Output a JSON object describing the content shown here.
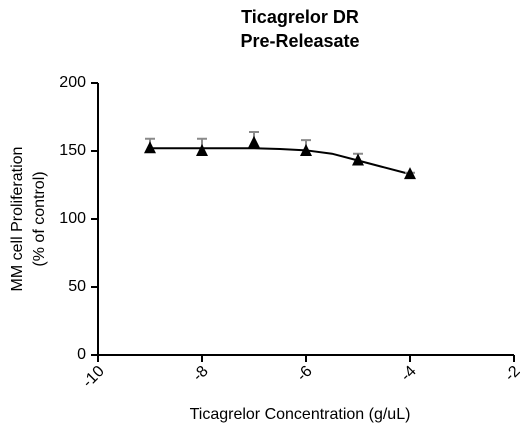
{
  "chart_data": {
    "type": "scatter",
    "title": [
      "Ticagrelor DR",
      "Pre-Releasate"
    ],
    "xlabel": "Ticagrelor Concentration (g/uL)",
    "ylabel": [
      "MM cell Proliferation",
      "(% of control)"
    ],
    "xlim": [
      -10,
      -2
    ],
    "ylim": [
      0,
      200
    ],
    "xticks": [
      -10,
      -8,
      -6,
      -4,
      -2
    ],
    "yticks": [
      0,
      50,
      100,
      150,
      200
    ],
    "grid": false,
    "series": [
      {
        "color": "#000000",
        "error_color": "#8a8a8a",
        "x": [
          -9,
          -8,
          -7,
          -6,
          -5,
          -4
        ],
        "values": [
          152,
          150,
          156,
          150,
          143,
          133
        ],
        "error": [
          7,
          9,
          8,
          8,
          5,
          1
        ]
      }
    ],
    "fit": {
      "color": "#000000",
      "x": [
        -9,
        -8,
        -7,
        -6.5,
        -6,
        -5.5,
        -5,
        -4.5,
        -4
      ],
      "values": [
        152,
        152,
        152,
        151.5,
        150.5,
        148,
        143,
        138,
        133
      ]
    }
  }
}
